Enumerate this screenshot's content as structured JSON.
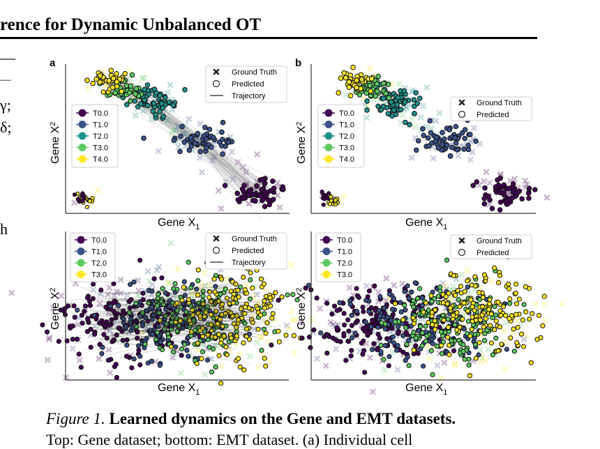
{
  "header": {
    "running_title": "rence for Dynamic Unbalanced OT"
  },
  "margin_fragments": [
    "—",
    "—",
    "γ;",
    "δ;",
    "h"
  ],
  "colors": {
    "T0": "#440154",
    "T1": "#3b528b",
    "T2": "#21918c",
    "T3": "#5ec962",
    "T4": "#fde725",
    "emt_T2": "#5ec962",
    "emt_T3": "#fde725"
  },
  "panels": {
    "top_a": {
      "letter": "a",
      "xlabel": "Gene X",
      "xlabel_sub": "1",
      "ylabel": "Gene X",
      "ylabel_sub": "2",
      "legend_times": [
        "T0.0",
        "T1.0",
        "T2.0",
        "T3.0",
        "T4.0"
      ],
      "legend_markers": [
        "Ground Truth",
        "Predicted",
        "Trajectory"
      ]
    },
    "top_b": {
      "letter": "b",
      "xlabel": "Gene X",
      "xlabel_sub": "1",
      "ylabel": "Gene X",
      "ylabel_sub": "2",
      "legend_times": [
        "T0.0",
        "T1.0",
        "T2.0",
        "T3.0",
        "T4.0"
      ],
      "legend_markers": [
        "Ground Truth",
        "Predicted"
      ]
    },
    "bottom_a": {
      "xlabel": "Gene X",
      "xlabel_sub": "1",
      "ylabel": "Gene X",
      "ylabel_sub": "2",
      "legend_times": [
        "T0.0",
        "T1.0",
        "T2.0",
        "T3.0"
      ],
      "legend_markers": [
        "Ground Truth",
        "Predicted",
        "Trajectory"
      ]
    },
    "bottom_b": {
      "xlabel": "Gene X",
      "xlabel_sub": "1",
      "ylabel": "Gene X",
      "ylabel_sub": "2",
      "legend_times": [
        "T0.0",
        "T1.0",
        "T2.0",
        "T3.0"
      ],
      "legend_markers": [
        "Ground Truth",
        "Predicted"
      ]
    }
  },
  "caption": {
    "label": "Figure 1.",
    "bold": "Learned dynamics on the Gene and EMT datasets.",
    "line2": "Top: Gene dataset; bottom: EMT dataset. (a) Individual cell"
  }
}
